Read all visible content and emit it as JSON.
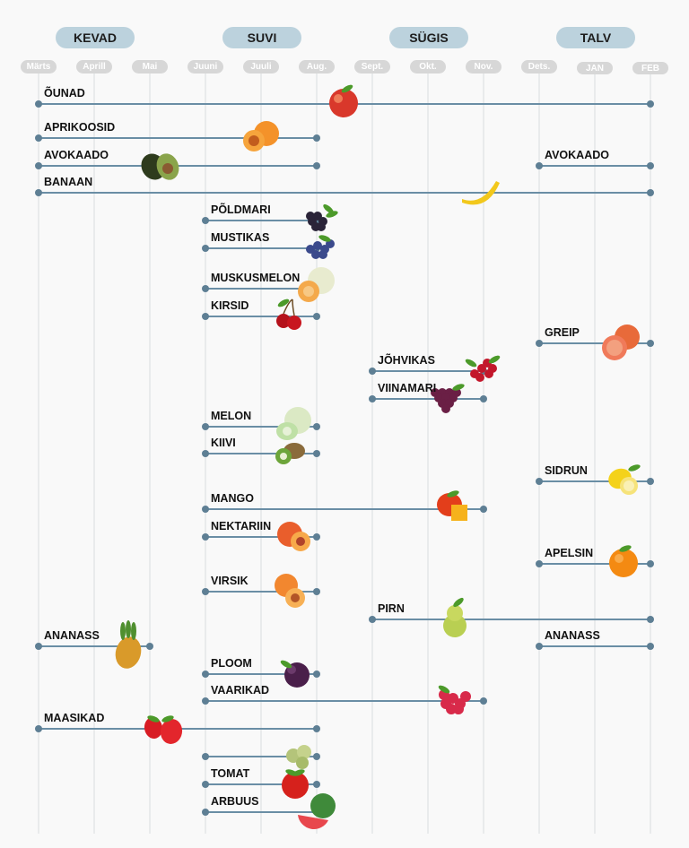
{
  "chart_data": {
    "type": "gantt",
    "title": "",
    "seasons": [
      {
        "name": "KEVAD",
        "months": [
          0,
          2
        ]
      },
      {
        "name": "SUVI",
        "months": [
          3,
          5
        ]
      },
      {
        "name": "SÜGIS",
        "months": [
          6,
          8
        ]
      },
      {
        "name": "TALV",
        "months": [
          9,
          11
        ]
      }
    ],
    "months": [
      "Märts",
      "Aprill",
      "Mai",
      "Juuni",
      "Juuli",
      "Aug.",
      "Sept.",
      "Okt.",
      "Nov.",
      "Dets.",
      "JAN",
      "FEB"
    ],
    "rows": [
      {
        "label": "ÕUNAD",
        "start": 0,
        "end": 11,
        "icon": "apple-icon"
      },
      {
        "label": "APRIKOOSID",
        "start": 0,
        "end": 5,
        "icon": "apricot-icon"
      },
      {
        "label": "AVOKAADO",
        "start": 0,
        "end": 5,
        "icon": "avocado-icon",
        "second": {
          "label": "AVOKAADO",
          "start": 9,
          "end": 11
        }
      },
      {
        "label": "BANAAN",
        "start": 0,
        "end": 11,
        "icon": "banana-icon"
      },
      {
        "label": "PÕLDMARI",
        "start": 3,
        "end": 5,
        "icon": "blackberry-icon"
      },
      {
        "label": "MUSTIKAS",
        "start": 3,
        "end": 5,
        "icon": "blueberry-icon"
      },
      {
        "label": "MUSKUSMELON",
        "start": 3,
        "end": 5,
        "icon": "cantaloupe-icon"
      },
      {
        "label": "KIRSID",
        "start": 3,
        "end": 5,
        "icon": "cherry-icon"
      },
      {
        "label": "GREIP",
        "start": 9,
        "end": 11,
        "icon": "grapefruit-icon"
      },
      {
        "label": "JÕHVIKAS",
        "start": 6,
        "end": 8,
        "icon": "cranberry-icon"
      },
      {
        "label": "VIINAMARI",
        "start": 6,
        "end": 8,
        "icon": "grape-icon"
      },
      {
        "label": "MELON",
        "start": 3,
        "end": 5,
        "icon": "melon-icon"
      },
      {
        "label": "KIIVI",
        "start": 3,
        "end": 5,
        "icon": "kiwi-icon"
      },
      {
        "label": "SIDRUN",
        "start": 9,
        "end": 11,
        "icon": "lemon-icon"
      },
      {
        "label": "MANGO",
        "start": 3,
        "end": 8,
        "icon": "mango-icon"
      },
      {
        "label": "NEKTARIIN",
        "start": 3,
        "end": 5,
        "icon": "nectarine-icon"
      },
      {
        "label": "APELSIN",
        "start": 9,
        "end": 11,
        "icon": "orange-icon"
      },
      {
        "label": "VIRSIK",
        "start": 3,
        "end": 5,
        "icon": "peach-icon"
      },
      {
        "label": "PIRN",
        "start": 6,
        "end": 11,
        "icon": "pear-icon"
      },
      {
        "label": "ANANASS",
        "start": 0,
        "end": 2,
        "icon": "pineapple-icon",
        "second": {
          "label": "ANANASS",
          "start": 9,
          "end": 11
        }
      },
      {
        "label": "PLOOM",
        "start": 3,
        "end": 5,
        "icon": "plum-icon"
      },
      {
        "label": "VAARIKAD",
        "start": 3,
        "end": 8,
        "icon": "raspberry-icon"
      },
      {
        "label": "MAASIKAD",
        "start": 0,
        "end": 5,
        "icon": "strawberry-icon"
      },
      {
        "label": "",
        "start": 3,
        "end": 5,
        "icon": "gooseberry-icon"
      },
      {
        "label": "TOMAT",
        "start": 3,
        "end": 5,
        "icon": "tomato-icon"
      },
      {
        "label": "ARBUUS",
        "start": 3,
        "end": 5,
        "icon": "watermelon-icon"
      }
    ],
    "colors": {
      "line": "#6a8ea5",
      "dot": "#5e7f94",
      "grid": "#d9dde0",
      "season_pill": "#bcd2dd",
      "month_pill": "#d7d7d7"
    }
  }
}
